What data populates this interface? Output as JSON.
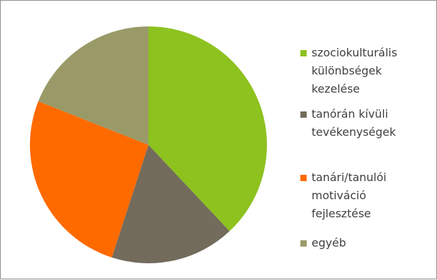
{
  "chart_data": {
    "type": "pie",
    "categories": [
      "szociokulturális különbségek kezelése",
      "tanórán kívüli tevékenységek",
      "tanári/tanulói motiváció fejlesztése",
      "egyéb"
    ],
    "values": [
      38,
      17,
      26,
      19
    ],
    "colors": [
      "#8dc21f",
      "#736b5b",
      "#ff6a00",
      "#9a9a68"
    ],
    "legend": "right"
  }
}
